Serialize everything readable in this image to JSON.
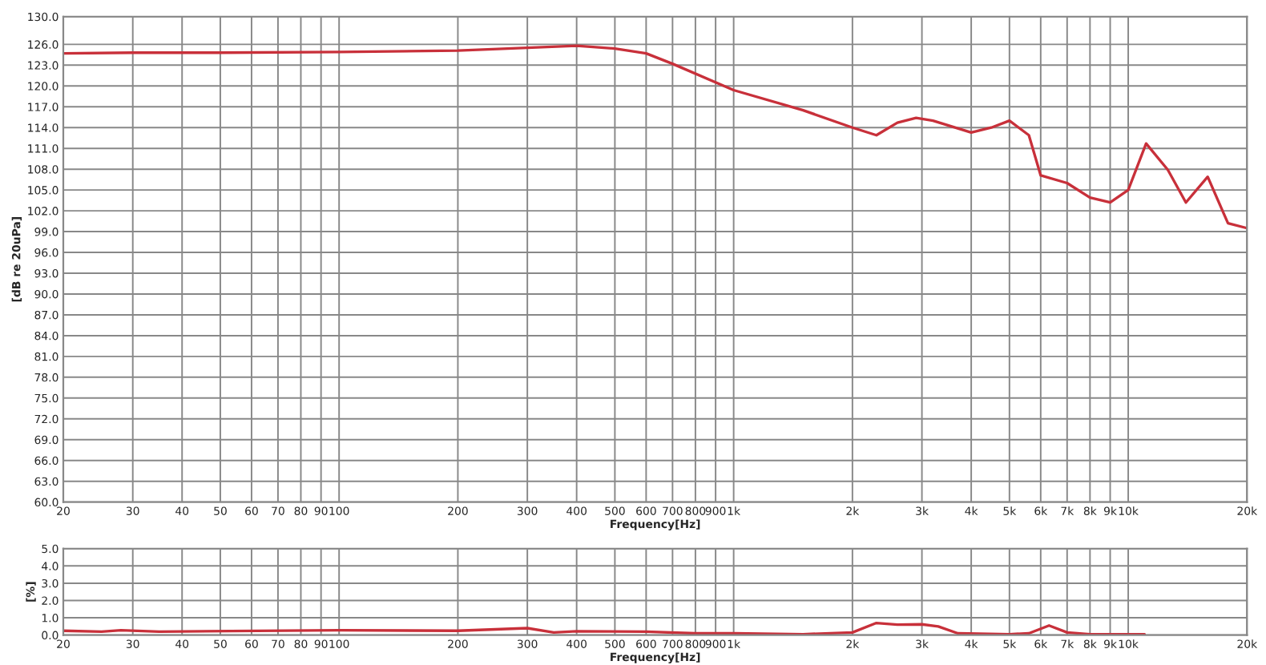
{
  "chart_data": [
    {
      "type": "line",
      "xlabel": "Frequency[Hz]",
      "ylabel": "[dB re 20uPa]",
      "log": "x",
      "grid": true,
      "legend": false,
      "marker": "none",
      "line_style": "solid",
      "xlim": [
        20,
        20000
      ],
      "xticks": [
        20,
        30,
        40,
        50,
        60,
        70,
        80,
        90,
        100,
        200,
        300,
        400,
        500,
        600,
        700,
        800,
        900,
        {
          "value": 1000,
          "label": "1k"
        },
        {
          "value": 2000,
          "label": "2k"
        },
        {
          "value": 3000,
          "label": "3k"
        },
        {
          "value": 4000,
          "label": "4k"
        },
        {
          "value": 5000,
          "label": "5k"
        },
        {
          "value": 6000,
          "label": "6k"
        },
        {
          "value": 7000,
          "label": "7k"
        },
        {
          "value": 8000,
          "label": "8k"
        },
        {
          "value": 9000,
          "label": "9k"
        },
        {
          "value": 10000,
          "label": "10k"
        },
        {
          "value": 20000,
          "label": "20k"
        }
      ],
      "ylim": [
        60,
        130
      ],
      "yticks": [
        {
          "value": 60,
          "label": "60.0"
        },
        {
          "value": 63,
          "label": "63.0"
        },
        {
          "value": 66,
          "label": "66.0"
        },
        {
          "value": 69,
          "label": "69.0"
        },
        {
          "value": 72,
          "label": "72.0"
        },
        {
          "value": 75,
          "label": "75.0"
        },
        {
          "value": 78,
          "label": "78.0"
        },
        {
          "value": 81,
          "label": "81.0"
        },
        {
          "value": 84,
          "label": "84.0"
        },
        {
          "value": 87,
          "label": "87.0"
        },
        {
          "value": 90,
          "label": "90.0"
        },
        {
          "value": 93,
          "label": "93.0"
        },
        {
          "value": 96,
          "label": "96.0"
        },
        {
          "value": 99,
          "label": "99.0"
        },
        {
          "value": 102,
          "label": "102.0"
        },
        {
          "value": 105,
          "label": "105.0"
        },
        {
          "value": 108,
          "label": "108.0"
        },
        {
          "value": 111,
          "label": "111.0"
        },
        {
          "value": 114,
          "label": "114.0"
        },
        {
          "value": 117,
          "label": "117.0"
        },
        {
          "value": 120,
          "label": "120.0"
        },
        {
          "value": 123,
          "label": "123.0"
        },
        {
          "value": 126,
          "label": "126.0"
        },
        {
          "value": 130,
          "label": "130.0"
        }
      ],
      "series": [
        {
          "color": "#c8303a",
          "x": [
            20,
            30,
            50,
            100,
            200,
            300,
            400,
            500,
            600,
            700,
            1000,
            1500,
            2000,
            2300,
            2600,
            2900,
            3200,
            4000,
            4500,
            5000,
            5600,
            6000,
            7000,
            8000,
            9000,
            10000,
            11100,
            12600,
            14000,
            15900,
            17900,
            20000
          ],
          "values": [
            124.7,
            124.8,
            124.8,
            124.9,
            125.1,
            125.5,
            125.8,
            125.4,
            124.7,
            123.2,
            119.4,
            116.5,
            114.0,
            112.9,
            114.7,
            115.4,
            115.0,
            113.3,
            114.0,
            115.0,
            112.9,
            107.1,
            106.0,
            103.9,
            103.2,
            105.0,
            111.7,
            107.9,
            103.2,
            106.9,
            100.2,
            99.5
          ]
        }
      ]
    },
    {
      "type": "line",
      "xlabel": "Frequency[Hz]",
      "ylabel": "[%]",
      "log": "x",
      "grid": true,
      "legend": false,
      "marker": "none",
      "line_style": "solid",
      "xlim": [
        20,
        20000
      ],
      "xticks": [
        20,
        30,
        40,
        50,
        60,
        70,
        80,
        90,
        100,
        200,
        300,
        400,
        500,
        600,
        700,
        800,
        900,
        {
          "value": 1000,
          "label": "1k"
        },
        {
          "value": 2000,
          "label": "2k"
        },
        {
          "value": 3000,
          "label": "3k"
        },
        {
          "value": 4000,
          "label": "4k"
        },
        {
          "value": 5000,
          "label": "5k"
        },
        {
          "value": 6000,
          "label": "6k"
        },
        {
          "value": 7000,
          "label": "7k"
        },
        {
          "value": 8000,
          "label": "8k"
        },
        {
          "value": 9000,
          "label": "9k"
        },
        {
          "value": 10000,
          "label": "10k"
        },
        {
          "value": 20000,
          "label": "20k"
        }
      ],
      "ylim": [
        0,
        5
      ],
      "yticks": [
        {
          "value": 0,
          "label": "0.0"
        },
        {
          "value": 1,
          "label": "1.0"
        },
        {
          "value": 2,
          "label": "2.0"
        },
        {
          "value": 3,
          "label": "3.0"
        },
        {
          "value": 4,
          "label": "4.0"
        },
        {
          "value": 5,
          "label": "5.0"
        }
      ],
      "series": [
        {
          "color": "#c8303a",
          "x": [
            20,
            25,
            28,
            35,
            100,
            200,
            300,
            350,
            400,
            600,
            800,
            1000,
            1500,
            2000,
            2300,
            2600,
            3000,
            3300,
            3700,
            5000,
            5600,
            6300,
            7000,
            8000,
            10000,
            11000
          ],
          "values": [
            0.25,
            0.2,
            0.28,
            0.2,
            0.28,
            0.25,
            0.4,
            0.15,
            0.22,
            0.2,
            0.1,
            0.1,
            0.05,
            0.15,
            0.7,
            0.6,
            0.62,
            0.5,
            0.1,
            0.05,
            0.1,
            0.55,
            0.15,
            0.05,
            0.05,
            0.05
          ]
        }
      ]
    }
  ]
}
